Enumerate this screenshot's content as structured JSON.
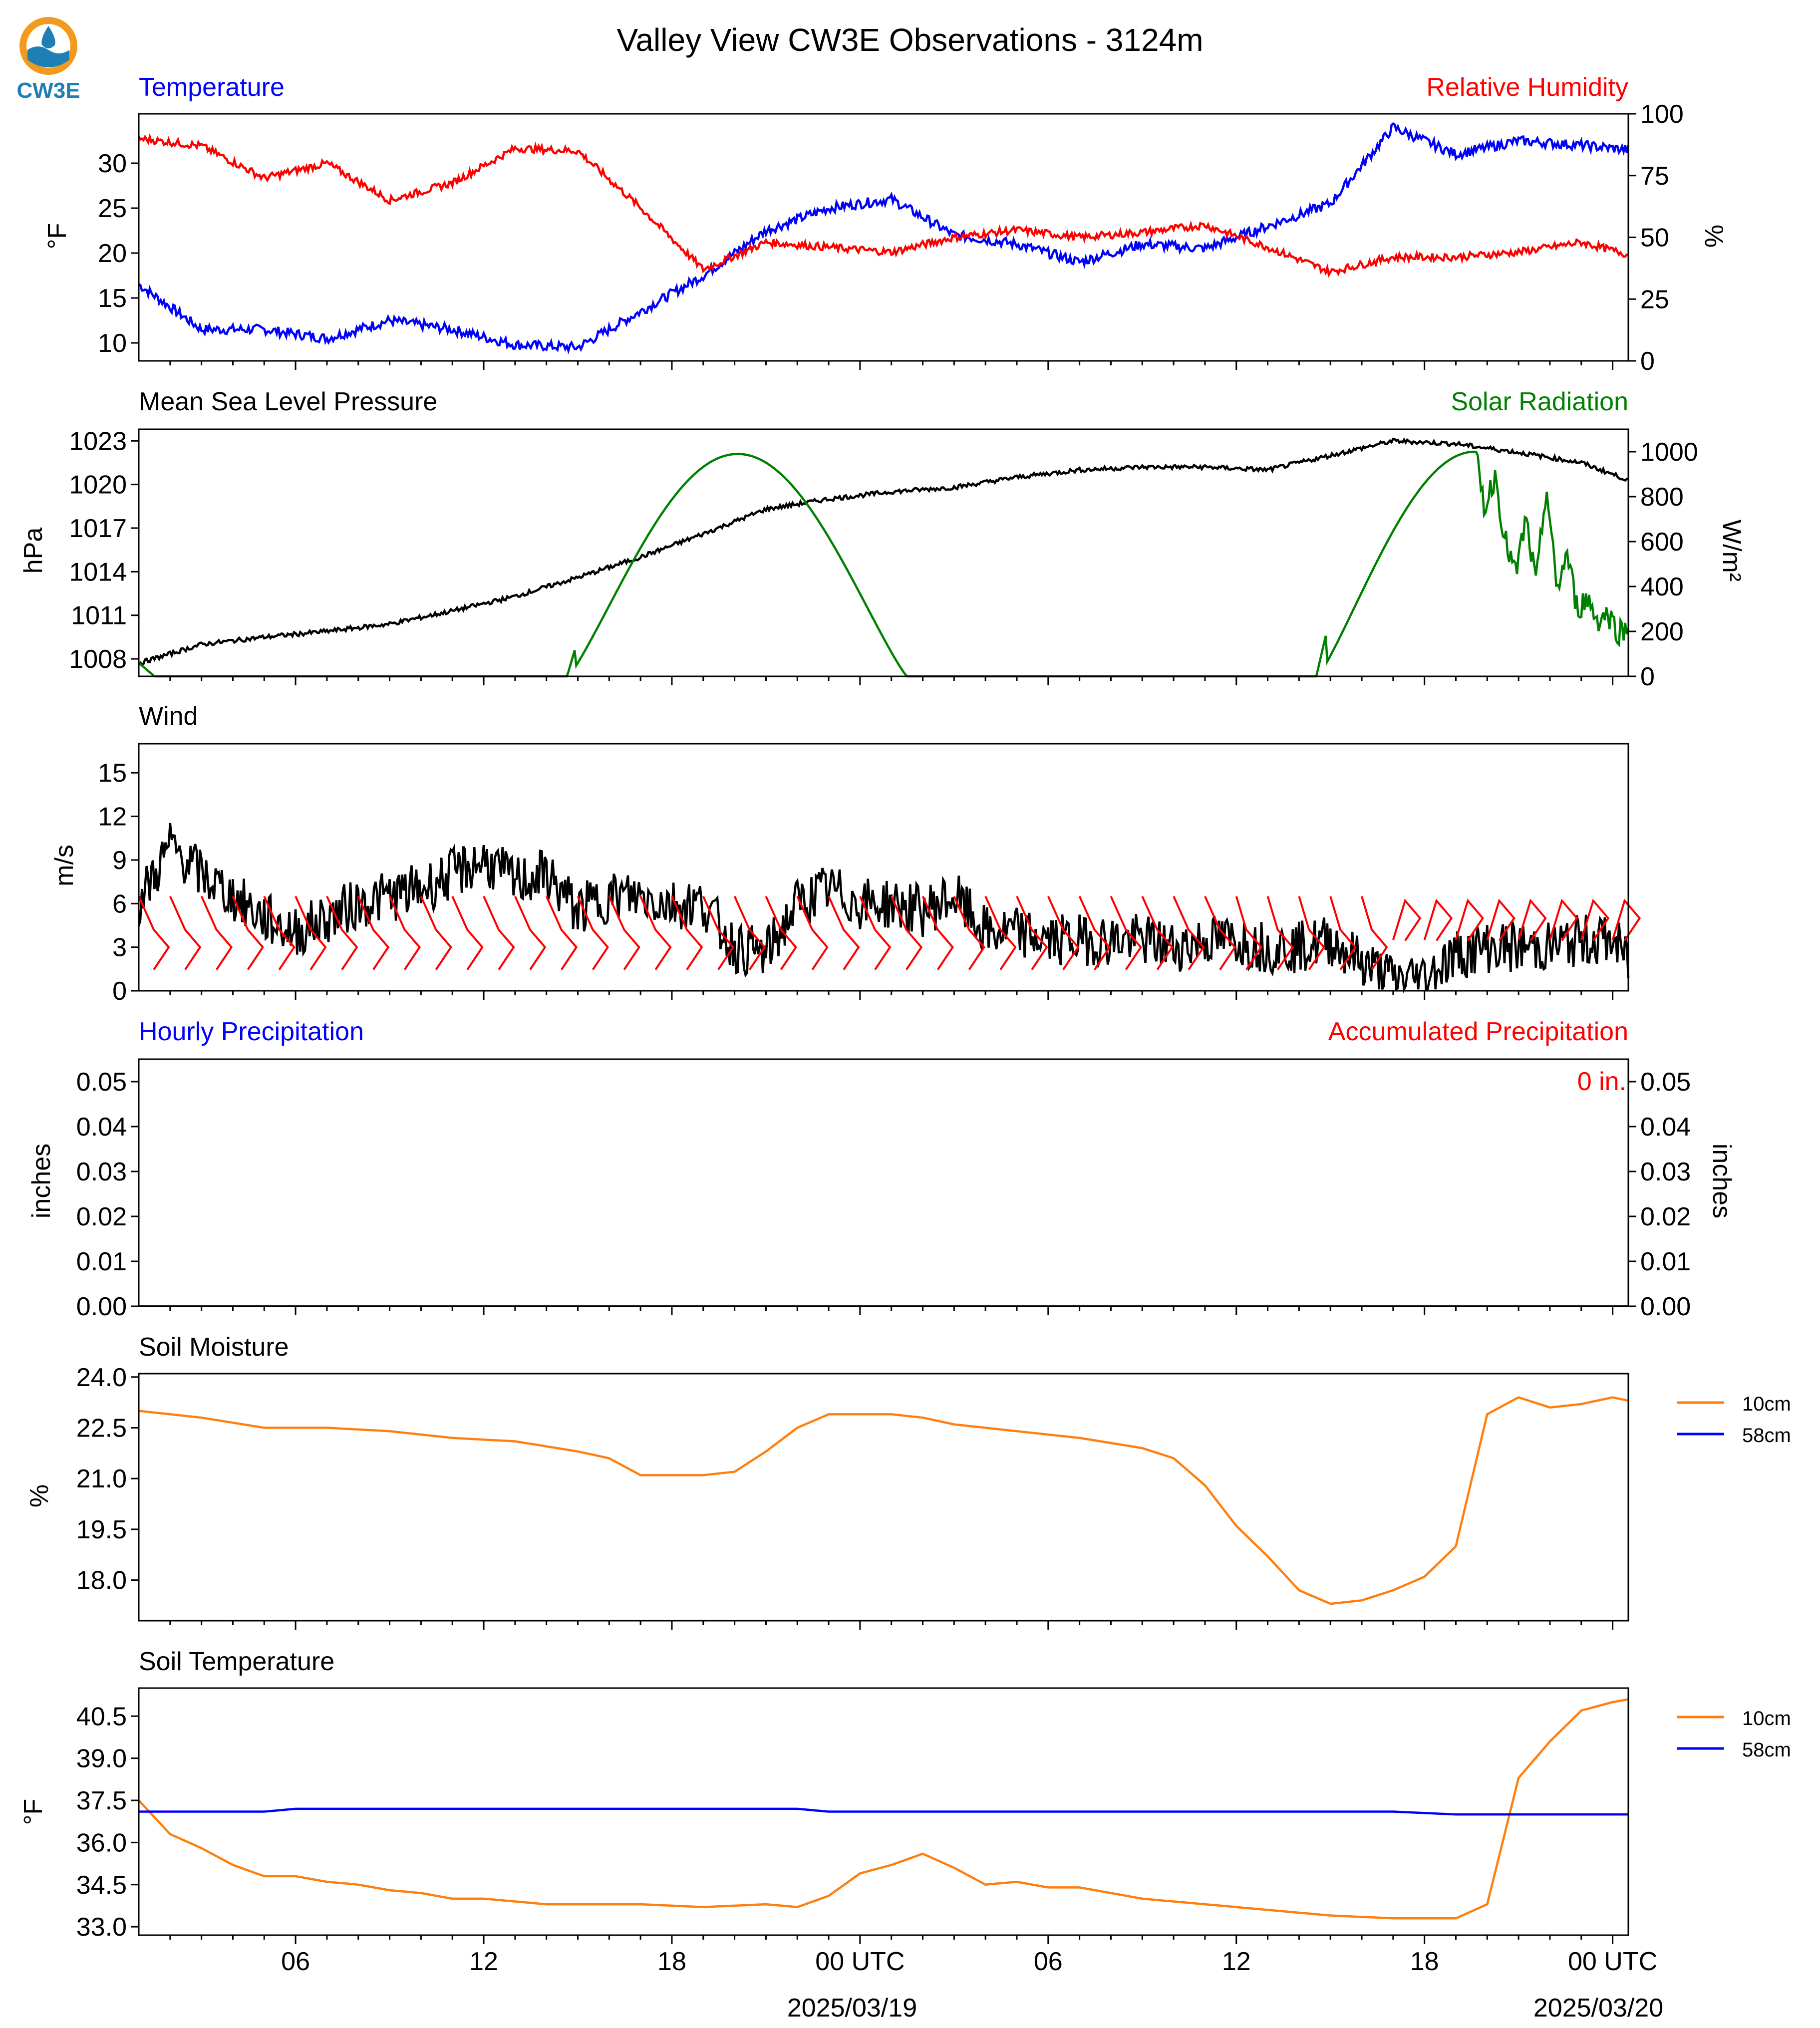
{
  "figure": {
    "title": "Valley View CW3E Observations - 3124m",
    "logo_text": "CW3E",
    "x_ticks": [
      "06",
      "12",
      "18",
      "00 UTC",
      "06",
      "12",
      "18",
      "00 UTC"
    ],
    "date_labels": [
      "2025/03/19",
      "2025/03/20"
    ]
  },
  "colors": {
    "temperature": "#0000ff",
    "humidity": "#ff0000",
    "pressure": "#000000",
    "solar": "#008000",
    "wind": "#000000",
    "barbs": "#ff0000",
    "soil_10cm": "#ff7f0e",
    "soil_58cm": "#0000ff"
  },
  "chart_data": [
    {
      "type": "line",
      "title_left": "Temperature",
      "title_right": "Relative Humidity",
      "ylabel": "°F",
      "ylabel_right": "%",
      "yticks": [
        "10",
        "15",
        "20",
        "25",
        "30"
      ],
      "yticks_right": [
        "0",
        "25",
        "50",
        "75",
        "100"
      ],
      "ylim": [
        8,
        35.5
      ],
      "ylim_right": [
        0,
        100
      ],
      "x_hours": [
        0,
        2,
        4,
        6,
        8,
        10,
        12,
        14,
        16,
        18,
        20,
        22,
        24,
        26,
        28,
        30,
        32,
        34,
        36,
        38,
        40,
        42,
        44,
        46,
        47.5
      ],
      "series": [
        {
          "name": "Temperature",
          "axis": "left",
          "color_key": "temperature",
          "values": [
            16.5,
            11.5,
            11.5,
            10.5,
            12.5,
            11.5,
            9.8,
            9.5,
            13.5,
            17.5,
            22.5,
            25,
            26,
            22,
            21,
            19,
            21,
            20.5,
            23,
            25.5,
            34,
            31,
            32.5,
            32,
            31.5
          ]
        },
        {
          "name": "Relative Humidity",
          "axis": "right",
          "color_key": "humidity",
          "values": [
            90,
            87,
            74,
            80,
            65,
            72,
            86,
            85,
            62,
            37,
            48,
            46,
            44,
            50,
            53,
            50,
            52,
            55,
            46,
            36,
            42,
            42,
            44,
            48,
            43
          ]
        }
      ]
    },
    {
      "type": "line",
      "title_left": "Mean Sea Level Pressure",
      "title_right": "Solar Radiation",
      "ylabel": "hPa",
      "ylabel_right": "W/m²",
      "yticks": [
        "1008",
        "1011",
        "1014",
        "1017",
        "1020",
        "1023"
      ],
      "yticks_right": [
        "0",
        "200",
        "400",
        "600",
        "800",
        "1000"
      ],
      "ylim": [
        1006.8,
        1023.8
      ],
      "ylim_right": [
        0,
        1100
      ],
      "x_hours": [
        0,
        2,
        4,
        6,
        8,
        10,
        12,
        14,
        16,
        18,
        20,
        22,
        24,
        26,
        28,
        30,
        32,
        34,
        36,
        38,
        40,
        42,
        44,
        46,
        47.5
      ],
      "series": [
        {
          "name": "Mean Sea Level Pressure",
          "axis": "left",
          "color_key": "pressure",
          "values": [
            1007.7,
            1009.0,
            1009.5,
            1009.9,
            1010.4,
            1011.3,
            1012.3,
            1013.6,
            1015.0,
            1016.6,
            1018.3,
            1019.0,
            1019.5,
            1019.8,
            1020.5,
            1021.0,
            1021.2,
            1021.2,
            1021.0,
            1022.0,
            1023.0,
            1022.8,
            1022.2,
            1021.5,
            1020.3
          ]
        }
      ],
      "solar": {
        "name": "Solar Radiation",
        "axis": "right",
        "color_key": "solar",
        "day1": {
          "rise_hour": 13.7,
          "peak_hour": 19.1,
          "set_hour": 24.5,
          "peak": 990
        },
        "day2": {
          "rise_hour": 37.6,
          "peak_hour": 42.6,
          "peak": 1000,
          "late_values": [
            1000,
            750,
            900,
            600,
            450,
            700,
            400,
            850,
            380,
            550,
            300,
            350,
            250,
            280,
            200,
            210
          ]
        }
      }
    },
    {
      "type": "line",
      "title_left": "Wind",
      "ylabel": "m/s",
      "yticks": [
        "0",
        "3",
        "6",
        "9",
        "12",
        "15"
      ],
      "ylim": [
        0,
        17
      ],
      "x_hours": [
        0,
        1,
        2,
        3,
        4,
        5,
        6,
        7,
        8,
        9,
        10,
        11,
        12,
        13,
        14,
        15,
        16,
        17,
        18,
        19,
        20,
        21,
        22,
        23,
        24,
        25,
        26,
        27,
        28,
        29,
        30,
        31,
        32,
        33,
        34,
        35,
        36,
        37,
        38,
        39,
        40,
        41,
        42,
        43,
        44,
        45,
        46,
        47,
        47.5
      ],
      "series": [
        {
          "name": "Wind",
          "axis": "left",
          "color_key": "wind",
          "values": [
            6,
            10,
            8,
            6.5,
            5,
            4,
            5,
            6,
            6.5,
            7,
            8,
            9,
            7.5,
            8,
            5.5,
            6.5,
            6.5,
            6,
            6,
            3,
            2.5,
            6,
            7,
            6,
            6,
            5.5,
            6.5,
            4,
            4,
            3.5,
            3.5,
            3.5,
            3.5,
            3,
            3.5,
            3.5,
            3,
            3,
            3.5,
            2,
            0.8,
            1,
            2.5,
            3,
            3,
            3,
            3.5,
            3.5,
            2
          ]
        }
      ]
    },
    {
      "type": "line",
      "title_left": "Hourly Precipitation",
      "title_right": "Accumulated Precipitation",
      "annotation": "0 in.",
      "ylabel": "inches",
      "ylabel_right": "inches",
      "yticks": [
        "0.00",
        "0.01",
        "0.02",
        "0.03",
        "0.04",
        "0.05"
      ],
      "yticks_right": [
        "0.00",
        "0.01",
        "0.02",
        "0.03",
        "0.04",
        "0.05"
      ],
      "ylim": [
        0,
        0.055
      ],
      "x_hours": [
        0,
        47.5
      ],
      "series": [
        {
          "name": "Hourly Precipitation",
          "axis": "left",
          "color_key": "temperature",
          "values": [
            0,
            0
          ]
        },
        {
          "name": "Accumulated Precipitation",
          "axis": "right",
          "color_key": "humidity",
          "values": [
            0,
            0
          ]
        }
      ]
    },
    {
      "type": "line",
      "title_left": "Soil Moisture",
      "ylabel": "%",
      "yticks": [
        "18.0",
        "19.5",
        "21.0",
        "22.5",
        "24.0"
      ],
      "ylim": [
        16.8,
        24.1
      ],
      "legend": [
        "10cm",
        "58cm"
      ],
      "x_hours": [
        0,
        2,
        4,
        6,
        8,
        10,
        12,
        14,
        15,
        16,
        18,
        19,
        20,
        21,
        22,
        24,
        25,
        26,
        28,
        30,
        32,
        33,
        34,
        35,
        36,
        37,
        38,
        39,
        40,
        41,
        42,
        43,
        44,
        45,
        46,
        47,
        47.5
      ],
      "series": [
        {
          "name": "10cm",
          "color_key": "soil_10cm",
          "values": [
            23.0,
            22.8,
            22.5,
            22.5,
            22.4,
            22.2,
            22.1,
            21.8,
            21.6,
            21.1,
            21.1,
            21.2,
            21.8,
            22.5,
            22.9,
            22.9,
            22.8,
            22.6,
            22.4,
            22.2,
            21.9,
            21.6,
            20.8,
            19.6,
            18.7,
            17.7,
            17.3,
            17.4,
            17.7,
            18.1,
            19.0,
            22.9,
            23.4,
            23.1,
            23.2,
            23.4,
            23.3
          ]
        },
        {
          "name": "58cm",
          "color_key": "soil_58cm",
          "values": []
        }
      ]
    },
    {
      "type": "line",
      "title_left": "Soil Temperature",
      "ylabel": "°F",
      "yticks": [
        "33.0",
        "34.5",
        "36.0",
        "37.5",
        "39.0",
        "40.5"
      ],
      "ylim": [
        32.7,
        41.5
      ],
      "legend": [
        "10cm",
        "58cm"
      ],
      "x_hours": [
        0,
        1,
        2,
        3,
        4,
        5,
        6,
        7,
        8,
        9,
        10,
        11,
        12,
        13,
        14,
        16,
        18,
        20,
        21,
        22,
        23,
        24,
        25,
        26,
        27,
        28,
        29,
        30,
        32,
        34,
        36,
        38,
        40,
        42,
        43,
        44,
        45,
        46,
        47,
        47.5
      ],
      "series": [
        {
          "name": "10cm",
          "color_key": "soil_10cm",
          "values": [
            37.5,
            36.3,
            35.8,
            35.2,
            34.8,
            34.8,
            34.6,
            34.5,
            34.3,
            34.2,
            34.0,
            34.0,
            33.9,
            33.8,
            33.8,
            33.8,
            33.7,
            33.8,
            33.7,
            34.1,
            34.9,
            35.2,
            35.6,
            35.1,
            34.5,
            34.6,
            34.4,
            34.4,
            34.0,
            33.8,
            33.6,
            33.4,
            33.3,
            33.3,
            33.8,
            38.3,
            39.6,
            40.7,
            41.0,
            41.1
          ]
        },
        {
          "name": "58cm",
          "color_key": "soil_58cm",
          "values": [
            37.1,
            37.1,
            37.1,
            37.1,
            37.1,
            37.2,
            37.2,
            37.2,
            37.2,
            37.2,
            37.2,
            37.2,
            37.2,
            37.2,
            37.2,
            37.2,
            37.2,
            37.2,
            37.2,
            37.1,
            37.1,
            37.1,
            37.1,
            37.1,
            37.1,
            37.1,
            37.1,
            37.1,
            37.1,
            37.1,
            37.1,
            37.1,
            37.1,
            37.0,
            37.0,
            37.0,
            37.0,
            37.0,
            37.0,
            37.0
          ]
        }
      ]
    }
  ]
}
